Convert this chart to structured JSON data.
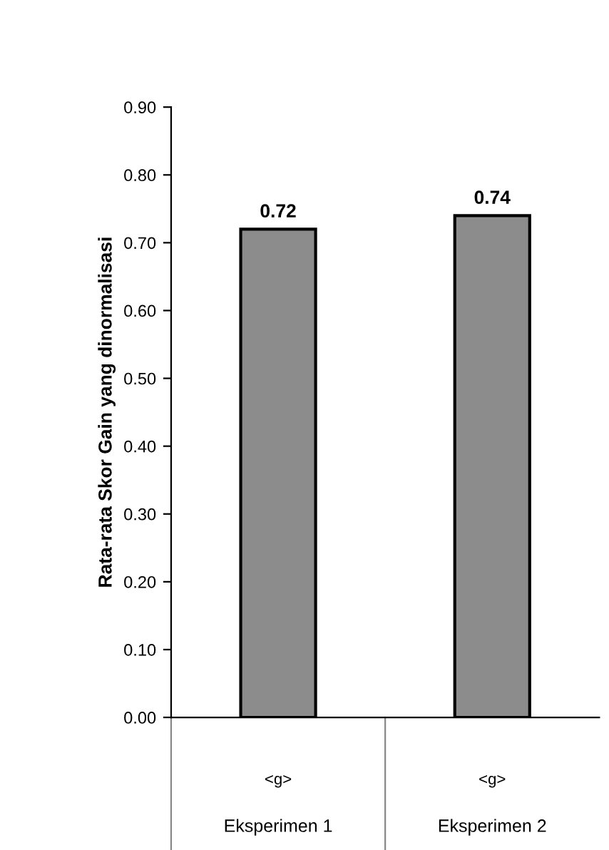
{
  "chart_data": {
    "type": "bar",
    "ylabel": "Rata-rata Skor Gain yang dinormalisasi",
    "categories": [
      "<g>",
      "<g>"
    ],
    "values": [
      0.72,
      0.74
    ],
    "color": "#8c8c8c",
    "ylim": [
      0,
      0.9
    ],
    "yticks": [
      "0.00",
      "0.10",
      "0.20",
      "0.30",
      "0.40",
      "0.50",
      "0.60",
      "0.70",
      "0.80",
      "0.90"
    ],
    "data_labels": true,
    "grid": false,
    "annotations": [
      "Eksperimen 1",
      "Eksperimen 2"
    ]
  }
}
